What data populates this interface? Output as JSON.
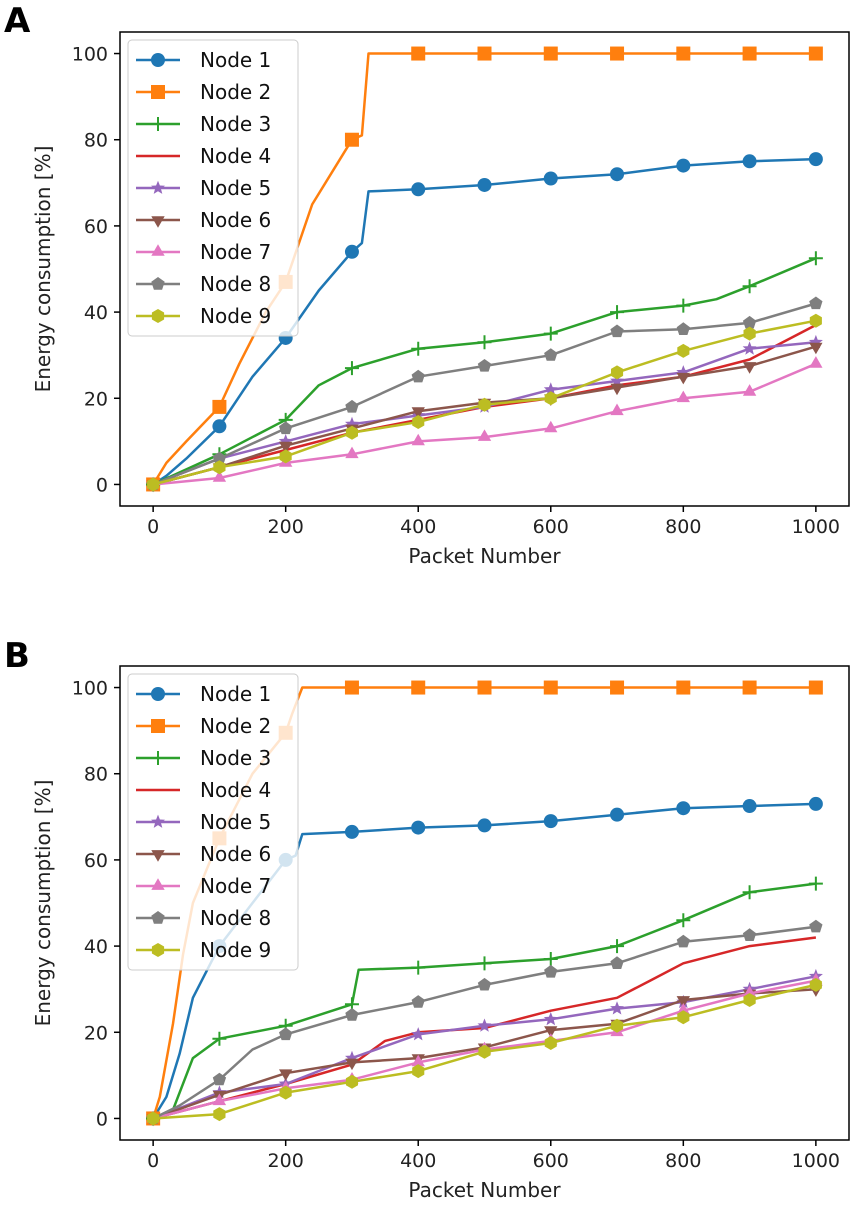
{
  "chart_data": [
    {
      "panel_label": "A",
      "type": "line",
      "xlabel": "Packet Number",
      "ylabel": "Energy consumption [%]",
      "xlim": [
        -50,
        1050
      ],
      "ylim": [
        -5,
        105
      ],
      "xticks": [
        0,
        200,
        400,
        600,
        800,
        1000
      ],
      "yticks": [
        0,
        20,
        40,
        60,
        80,
        100
      ],
      "legend_position": "top-left",
      "marker_x": [
        0,
        100,
        200,
        300,
        400,
        500,
        600,
        700,
        800,
        900,
        1000
      ],
      "series": [
        {
          "name": "Node 1",
          "color": "#1f77b4",
          "marker": "circle",
          "x": [
            0,
            20,
            50,
            100,
            150,
            200,
            250,
            300,
            315,
            325,
            400,
            500,
            600,
            700,
            800,
            900,
            1000
          ],
          "y": [
            0,
            2,
            6,
            13.5,
            25,
            34,
            45,
            54,
            56,
            68,
            68.5,
            69.5,
            71,
            72,
            74,
            75,
            75.5
          ]
        },
        {
          "name": "Node 2",
          "color": "#ff7f0e",
          "marker": "square",
          "x": [
            0,
            20,
            50,
            100,
            130,
            170,
            200,
            240,
            280,
            300,
            315,
            325,
            400,
            500,
            600,
            700,
            800,
            900,
            1000
          ],
          "y": [
            0,
            5,
            10,
            18,
            28,
            40,
            47,
            65,
            75,
            80,
            81,
            100,
            100,
            100,
            100,
            100,
            100,
            100,
            100
          ]
        },
        {
          "name": "Node 3",
          "color": "#2ca02c",
          "marker": "plus",
          "x": [
            0,
            100,
            200,
            250,
            300,
            400,
            500,
            600,
            700,
            800,
            850,
            900,
            1000
          ],
          "y": [
            0,
            7,
            15,
            23,
            27,
            31.5,
            33,
            35,
            40,
            41.5,
            43,
            46,
            52.5
          ]
        },
        {
          "name": "Node 4",
          "color": "#d62728",
          "marker": "none",
          "x": [
            0,
            100,
            200,
            300,
            400,
            500,
            600,
            700,
            800,
            900,
            1000
          ],
          "y": [
            0,
            4,
            8,
            12,
            15,
            18,
            20,
            23,
            25,
            29,
            37
          ]
        },
        {
          "name": "Node 5",
          "color": "#9467bd",
          "marker": "star",
          "x": [
            0,
            100,
            200,
            300,
            400,
            500,
            600,
            700,
            800,
            900,
            1000
          ],
          "y": [
            0,
            6,
            10,
            14,
            16,
            18,
            22,
            24,
            26,
            31.5,
            33
          ]
        },
        {
          "name": "Node 6",
          "color": "#8c564b",
          "marker": "triangle-down",
          "x": [
            0,
            100,
            200,
            300,
            400,
            500,
            600,
            700,
            800,
            900,
            1000
          ],
          "y": [
            0,
            4,
            9,
            13,
            17,
            19,
            20,
            22.5,
            25,
            27.5,
            32
          ]
        },
        {
          "name": "Node 7",
          "color": "#e377c2",
          "marker": "triangle-up",
          "x": [
            0,
            100,
            200,
            300,
            400,
            500,
            600,
            700,
            800,
            900,
            1000
          ],
          "y": [
            0,
            1.5,
            5,
            7,
            10,
            11,
            13,
            17,
            20,
            21.5,
            28
          ]
        },
        {
          "name": "Node 8",
          "color": "#7f7f7f",
          "marker": "pentagon",
          "x": [
            0,
            100,
            200,
            300,
            400,
            500,
            600,
            700,
            800,
            900,
            1000
          ],
          "y": [
            0,
            6,
            13,
            18,
            25,
            27.5,
            30,
            35.5,
            36,
            37.5,
            42
          ]
        },
        {
          "name": "Node 9",
          "color": "#bcbd22",
          "marker": "hexagon",
          "x": [
            0,
            100,
            200,
            300,
            400,
            500,
            600,
            700,
            800,
            900,
            1000
          ],
          "y": [
            0,
            4,
            6.5,
            12,
            14.5,
            18.5,
            20,
            26,
            31,
            35,
            38
          ]
        }
      ]
    },
    {
      "panel_label": "B",
      "type": "line",
      "xlabel": "Packet Number",
      "ylabel": "Energy consumption [%]",
      "xlim": [
        -50,
        1050
      ],
      "ylim": [
        -5,
        105
      ],
      "xticks": [
        0,
        200,
        400,
        600,
        800,
        1000
      ],
      "yticks": [
        0,
        20,
        40,
        60,
        80,
        100
      ],
      "legend_position": "top-left",
      "marker_x": [
        0,
        100,
        200,
        300,
        400,
        500,
        600,
        700,
        800,
        900,
        1000
      ],
      "series": [
        {
          "name": "Node 1",
          "color": "#1f77b4",
          "marker": "circle",
          "x": [
            0,
            20,
            40,
            60,
            100,
            150,
            200,
            215,
            225,
            300,
            400,
            500,
            600,
            700,
            800,
            900,
            1000
          ],
          "y": [
            0,
            5,
            15,
            28,
            40,
            50,
            60,
            61,
            66,
            66.5,
            67.5,
            68,
            69,
            70.5,
            72,
            72.5,
            73
          ]
        },
        {
          "name": "Node 2",
          "color": "#ff7f0e",
          "marker": "square",
          "x": [
            0,
            10,
            30,
            45,
            60,
            100,
            150,
            200,
            210,
            225,
            300,
            400,
            500,
            600,
            700,
            800,
            900,
            1000
          ],
          "y": [
            0,
            5,
            22,
            38,
            50,
            65,
            80,
            89.5,
            94,
            100,
            100,
            100,
            100,
            100,
            100,
            100,
            100,
            100
          ]
        },
        {
          "name": "Node 3",
          "color": "#2ca02c",
          "marker": "plus",
          "x": [
            0,
            30,
            60,
            100,
            200,
            300,
            310,
            400,
            500,
            600,
            700,
            800,
            900,
            1000
          ],
          "y": [
            0,
            2,
            14,
            18.5,
            21.5,
            26.5,
            34.5,
            35,
            36,
            37,
            40,
            46,
            52.5,
            54.5
          ]
        },
        {
          "name": "Node 4",
          "color": "#d62728",
          "marker": "none",
          "x": [
            0,
            100,
            200,
            300,
            350,
            400,
            500,
            600,
            700,
            750,
            800,
            900,
            1000
          ],
          "y": [
            0,
            4,
            8,
            12.5,
            18,
            20,
            21,
            25,
            28,
            32,
            36,
            40,
            42
          ]
        },
        {
          "name": "Node 5",
          "color": "#9467bd",
          "marker": "star",
          "x": [
            0,
            100,
            200,
            300,
            400,
            500,
            600,
            700,
            800,
            900,
            1000
          ],
          "y": [
            0,
            6,
            8,
            14,
            19.5,
            21.5,
            23,
            25.5,
            27,
            30,
            33
          ]
        },
        {
          "name": "Node 6",
          "color": "#8c564b",
          "marker": "triangle-down",
          "x": [
            0,
            100,
            200,
            300,
            400,
            500,
            600,
            700,
            800,
            900,
            1000
          ],
          "y": [
            0,
            5.5,
            10.5,
            13,
            14,
            16.5,
            20.5,
            22,
            27.5,
            29,
            30
          ]
        },
        {
          "name": "Node 7",
          "color": "#e377c2",
          "marker": "triangle-up",
          "x": [
            0,
            100,
            200,
            300,
            400,
            500,
            600,
            700,
            800,
            900,
            1000
          ],
          "y": [
            0,
            4,
            7,
            9,
            13,
            16,
            18,
            20,
            25,
            29,
            32
          ]
        },
        {
          "name": "Node 8",
          "color": "#7f7f7f",
          "marker": "pentagon",
          "x": [
            0,
            40,
            100,
            150,
            200,
            300,
            400,
            500,
            600,
            700,
            800,
            900,
            1000
          ],
          "y": [
            0,
            3,
            9,
            16,
            19.5,
            24,
            27,
            31,
            34,
            36,
            41,
            42.5,
            44.5
          ]
        },
        {
          "name": "Node 9",
          "color": "#bcbd22",
          "marker": "hexagon",
          "x": [
            0,
            100,
            200,
            300,
            400,
            500,
            600,
            700,
            800,
            900,
            1000
          ],
          "y": [
            0,
            1,
            6,
            8.5,
            11,
            15.5,
            17.5,
            21.5,
            23.5,
            27.5,
            31
          ]
        }
      ]
    }
  ]
}
